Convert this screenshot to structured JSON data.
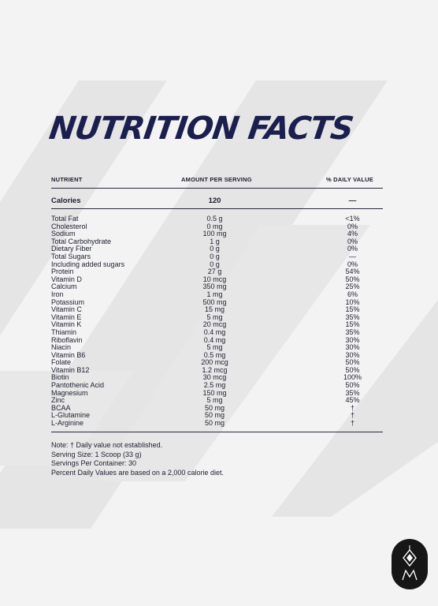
{
  "title": "NUTRITION FACTS",
  "header": {
    "nutrient": "NUTRIENT",
    "amount": "AMOUNT PER SERVING",
    "daily": "% DAILY VALUE"
  },
  "calories": {
    "label": "Calories",
    "amount": "120",
    "daily": "—"
  },
  "nutrients": [
    {
      "name": "Total Fat",
      "amount": "0.5 g",
      "daily": "<1%"
    },
    {
      "name": "Cholesterol",
      "amount": "0 mg",
      "daily": "0%"
    },
    {
      "name": "Sodium",
      "amount": "100 mg",
      "daily": "4%"
    },
    {
      "name": "Total Carbohydrate",
      "amount": "1 g",
      "daily": "0%"
    },
    {
      "name": "Dietary Fiber",
      "amount": "0 g",
      "daily": "0%"
    },
    {
      "name": "Total Sugars",
      "amount": "0 g",
      "daily": "—"
    },
    {
      "name": "Including added sugars",
      "amount": "0 g",
      "daily": "0%"
    },
    {
      "name": "Protein",
      "amount": "27 g",
      "daily": "54%"
    },
    {
      "name": "Vitamin D",
      "amount": "10 mcg",
      "daily": "50%"
    },
    {
      "name": "Calcium",
      "amount": "350 mg",
      "daily": "25%"
    },
    {
      "name": "Iron",
      "amount": "1 mg",
      "daily": "6%"
    },
    {
      "name": "Potassium",
      "amount": "500 mg",
      "daily": "10%"
    },
    {
      "name": "Vitamin C",
      "amount": "15 mg",
      "daily": "15%"
    },
    {
      "name": "Vitamin E",
      "amount": "5 mg",
      "daily": "35%"
    },
    {
      "name": "Vitamin K",
      "amount": "20 mcg",
      "daily": "15%"
    },
    {
      "name": "Thiamin",
      "amount": "0.4 mg",
      "daily": "35%"
    },
    {
      "name": "Riboflavin",
      "amount": "0.4 mg",
      "daily": "30%"
    },
    {
      "name": "Niacin",
      "amount": "5 mg",
      "daily": "30%"
    },
    {
      "name": "Vitamin B6",
      "amount": "0.5 mg",
      "daily": "30%"
    },
    {
      "name": "Folate",
      "amount": "200 mcg",
      "daily": "50%"
    },
    {
      "name": "Vitamin B12",
      "amount": "1.2 mcg",
      "daily": "50%"
    },
    {
      "name": "Biotin",
      "amount": "30 mcg",
      "daily": "100%"
    },
    {
      "name": "Pantothenic Acid",
      "amount": "2.5 mg",
      "daily": "50%"
    },
    {
      "name": "Magnesium",
      "amount": "150 mg",
      "daily": "35%"
    },
    {
      "name": "Zinc",
      "amount": "5 mg",
      "daily": "45%"
    },
    {
      "name": "BCAA",
      "amount": "50 mg",
      "daily": "†"
    },
    {
      "name": "L-Glutamine",
      "amount": "50 mg",
      "daily": "†"
    },
    {
      "name": "L-Arginine",
      "amount": "50 mg",
      "daily": "†"
    }
  ],
  "notes": [
    "Note: † Daily value not established.",
    "Serving Size: 1 Scoop (33 g)",
    "Servings Per Container: 30",
    "Percent Daily Values are based on a 2,000 calorie diet."
  ],
  "colors": {
    "title": "#1b1f4d",
    "stripes": "#e4e4e4",
    "badge": "#161616"
  },
  "icons": {
    "brand_logo": "diamond-monogram-logo"
  }
}
